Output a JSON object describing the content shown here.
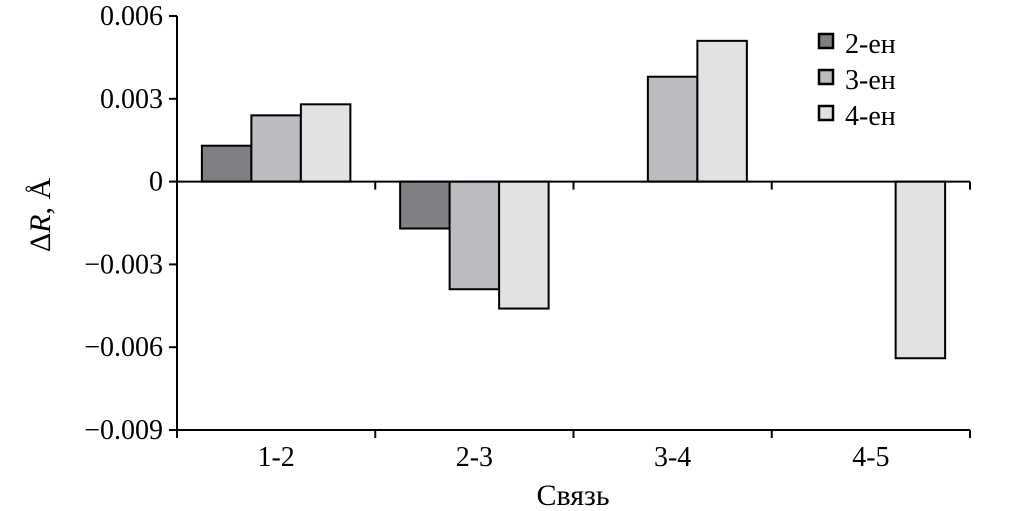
{
  "chart_data": {
    "type": "bar",
    "title": "",
    "xlabel": "Связь",
    "ylabel_prefix": "Δ",
    "ylabel_var": "R",
    "ylabel_suffix": ", Å",
    "ylim": [
      -0.009,
      0.006
    ],
    "yticks": [
      0.006,
      0.003,
      0,
      -0.003,
      -0.006,
      -0.009
    ],
    "ytick_labels": [
      "0.006",
      "0.003",
      "0",
      "−0.003",
      "−0.006",
      "−0.009"
    ],
    "categories": [
      "1-2",
      "2-3",
      "3-4",
      "4-5"
    ],
    "legend_position": "top-right",
    "series": [
      {
        "name": "2-ен",
        "color": "#808084",
        "values": [
          0.0013,
          -0.0017,
          null,
          null
        ]
      },
      {
        "name": "3-ен",
        "color": "#bcbcc0",
        "values": [
          0.0024,
          -0.0039,
          0.0038,
          null
        ]
      },
      {
        "name": "4-ен",
        "color": "#e2e2e4",
        "values": [
          0.0028,
          -0.0046,
          0.0051,
          -0.0064
        ]
      }
    ]
  }
}
